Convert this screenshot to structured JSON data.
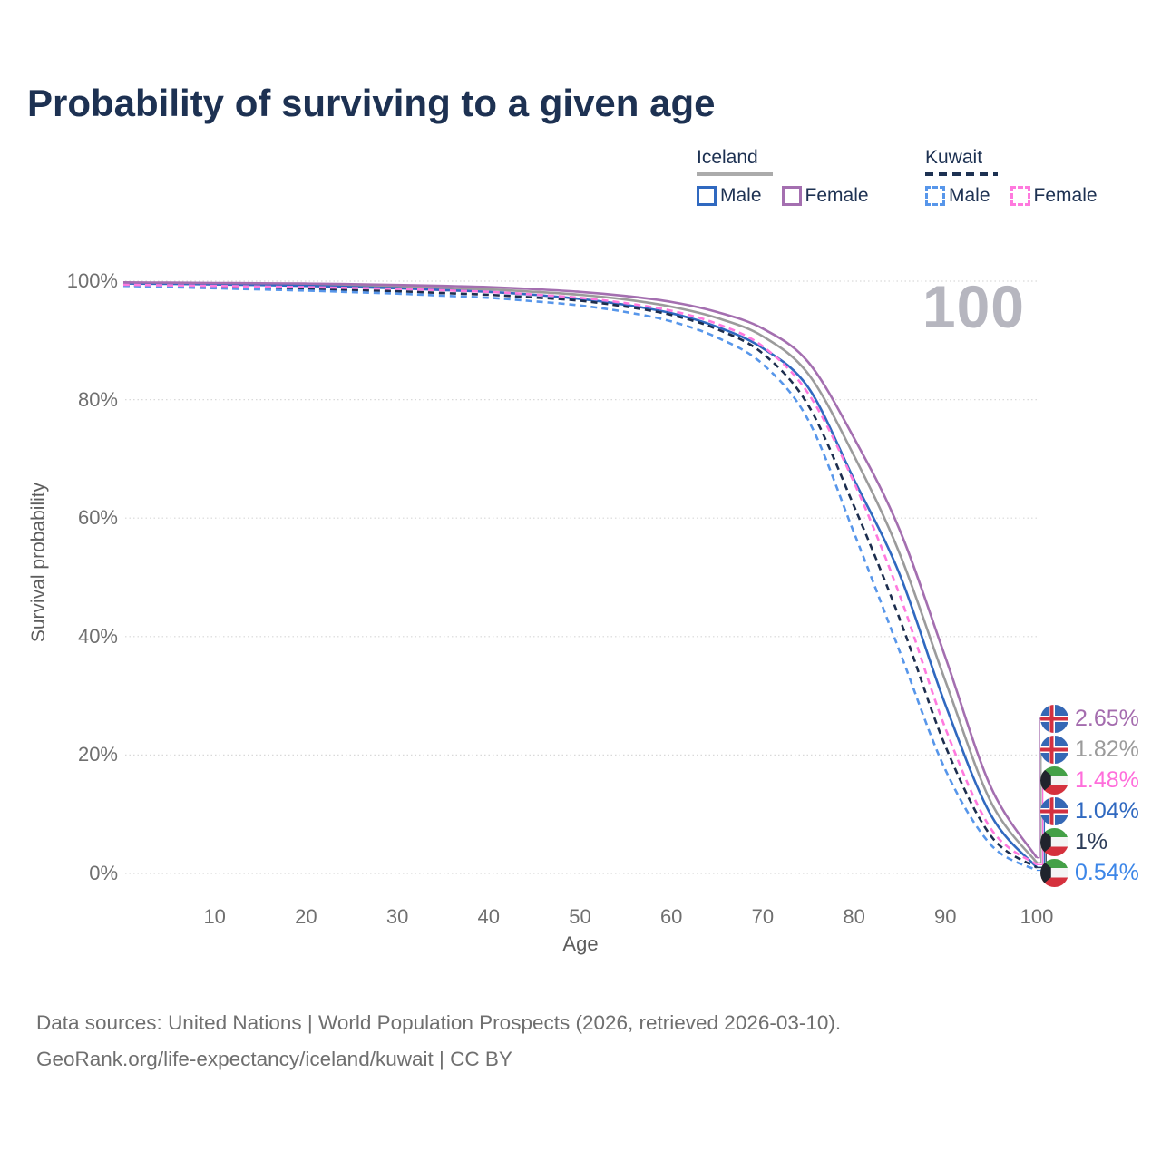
{
  "title": "Probability of surviving to a given age",
  "watermark": "100",
  "legend": {
    "groups": [
      {
        "label": "Iceland",
        "line_style": "solid",
        "items": [
          {
            "label": "Male",
            "series": "iceland-male"
          },
          {
            "label": "Female",
            "series": "iceland-female"
          }
        ]
      },
      {
        "label": "Kuwait",
        "line_style": "dashed",
        "items": [
          {
            "label": "Male",
            "series": "kuwait-male"
          },
          {
            "label": "Female",
            "series": "kuwait-female"
          }
        ]
      }
    ]
  },
  "end_labels": [
    {
      "value": "2.65%",
      "series": "iceland-female",
      "country": "iceland",
      "color": "#a46cae"
    },
    {
      "value": "1.82%",
      "series": "iceland-all",
      "country": "iceland",
      "color": "#9b9b9b"
    },
    {
      "value": "1.48%",
      "series": "kuwait-female",
      "country": "kuwait",
      "color": "#ff6edb"
    },
    {
      "value": "1.04%",
      "series": "iceland-male",
      "country": "iceland",
      "color": "#3069c0"
    },
    {
      "value": "1%",
      "series": "kuwait-all",
      "country": "kuwait",
      "color": "#2c3c58"
    },
    {
      "value": "0.54%",
      "series": "kuwait-male",
      "country": "kuwait",
      "color": "#3c86e8"
    }
  ],
  "footer": {
    "line1": "Data sources: United Nations | World Population Prospects (2026, retrieved 2026-03-10).",
    "line2": "GeoRank.org/life-expectancy/iceland/kuwait | CC BY"
  },
  "chart_data": {
    "type": "line",
    "title": "Probability of surviving to a given age",
    "xlabel": "Age",
    "ylabel": "Survival probability",
    "xlim": [
      0,
      100
    ],
    "ylim": [
      0,
      100
    ],
    "grid": "horizontal-dotted",
    "legend_position": "top-right",
    "xticks": [
      {
        "label": "10",
        "value": 10
      },
      {
        "label": "20",
        "value": 20
      },
      {
        "label": "30",
        "value": 30
      },
      {
        "label": "40",
        "value": 40
      },
      {
        "label": "50",
        "value": 50
      },
      {
        "label": "60",
        "value": 60
      },
      {
        "label": "70",
        "value": 70
      },
      {
        "label": "80",
        "value": 80
      },
      {
        "label": "90",
        "value": 90
      },
      {
        "label": "100",
        "value": 100
      }
    ],
    "yticks": [
      {
        "label": "100%",
        "value": 100
      },
      {
        "label": "80%",
        "value": 80
      },
      {
        "label": "60%",
        "value": 60
      },
      {
        "label": "40%",
        "value": 40
      },
      {
        "label": "20%",
        "value": 20
      },
      {
        "label": "0%",
        "value": 0
      }
    ],
    "ages": [
      0,
      5,
      10,
      15,
      20,
      25,
      30,
      35,
      40,
      45,
      50,
      55,
      60,
      65,
      70,
      75,
      80,
      85,
      90,
      95,
      100
    ],
    "series": [
      {
        "id": "iceland-female",
        "name": "Iceland Female",
        "country": "Iceland",
        "sex": "Female",
        "color": "#a46fb0",
        "dashed": false,
        "end_value_pct": 2.65,
        "values": [
          99.8,
          99.75,
          99.7,
          99.65,
          99.6,
          99.5,
          99.35,
          99.2,
          99.0,
          98.65,
          98.2,
          97.5,
          96.5,
          94.8,
          92.0,
          86.3,
          73.5,
          58.0,
          36.5,
          14.5,
          2.65
        ]
      },
      {
        "id": "iceland-all",
        "name": "Iceland",
        "country": "Iceland",
        "sex": "All",
        "color": "#9b9b9b",
        "dashed": false,
        "end_value_pct": 1.82,
        "values": [
          99.7,
          99.65,
          99.6,
          99.5,
          99.4,
          99.25,
          99.1,
          98.85,
          98.6,
          98.2,
          97.7,
          96.9,
          95.7,
          93.8,
          90.7,
          84.3,
          70.5,
          54.0,
          32.5,
          12.0,
          1.82
        ]
      },
      {
        "id": "iceland-male",
        "name": "Iceland Male",
        "country": "Iceland",
        "sex": "Male",
        "color": "#3069c0",
        "dashed": false,
        "end_value_pct": 1.04,
        "values": [
          99.6,
          99.55,
          99.45,
          99.35,
          99.2,
          99.0,
          98.8,
          98.5,
          98.2,
          97.7,
          97.0,
          96.0,
          94.6,
          92.3,
          88.7,
          82.0,
          66.5,
          50.5,
          28.5,
          9.8,
          1.04
        ]
      },
      {
        "id": "kuwait-female",
        "name": "Kuwait Female",
        "country": "Kuwait",
        "sex": "Female",
        "color": "#ff79de",
        "dashed": true,
        "end_value_pct": 1.48,
        "values": [
          99.4,
          99.3,
          99.2,
          99.1,
          99.0,
          98.85,
          98.7,
          98.45,
          98.2,
          97.75,
          97.2,
          96.3,
          95.0,
          92.8,
          89.0,
          81.0,
          66.0,
          47.0,
          24.5,
          7.5,
          1.48
        ]
      },
      {
        "id": "kuwait-all",
        "name": "Kuwait",
        "country": "Kuwait",
        "sex": "All",
        "color": "#1d2e4e",
        "dashed": true,
        "end_value_pct": 1.0,
        "values": [
          99.3,
          99.15,
          99.0,
          98.85,
          98.7,
          98.5,
          98.3,
          98.0,
          97.7,
          97.25,
          96.7,
          95.7,
          94.3,
          91.9,
          87.8,
          79.0,
          62.0,
          43.0,
          21.5,
          6.3,
          1.0
        ]
      },
      {
        "id": "kuwait-male",
        "name": "Kuwait Male",
        "country": "Kuwait",
        "sex": "Male",
        "color": "#5796ea",
        "dashed": true,
        "end_value_pct": 0.54,
        "values": [
          99.2,
          99.0,
          98.8,
          98.6,
          98.4,
          98.15,
          97.9,
          97.55,
          97.2,
          96.6,
          95.9,
          94.8,
          93.2,
          90.5,
          86.0,
          76.5,
          57.5,
          37.5,
          17.5,
          4.8,
          0.54
        ]
      }
    ]
  }
}
